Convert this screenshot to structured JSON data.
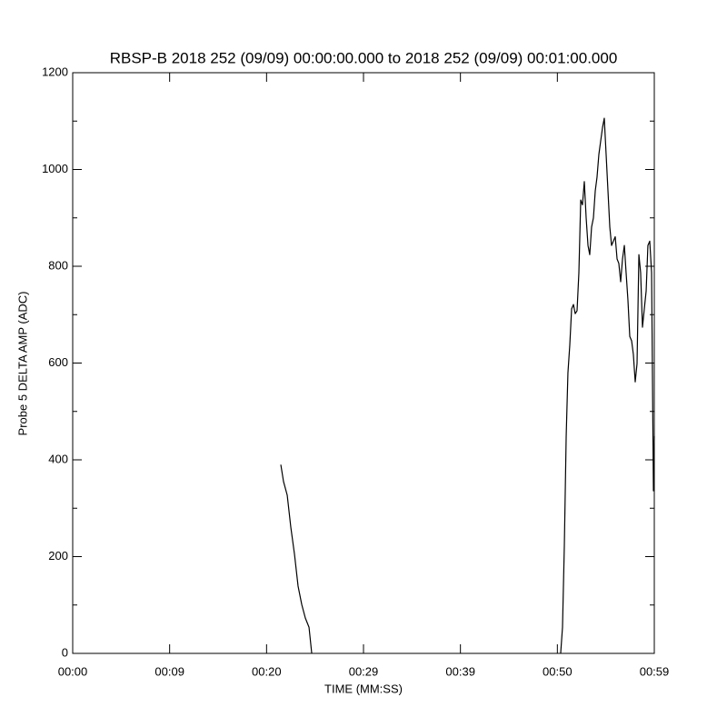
{
  "chart_data": {
    "type": "line",
    "title": "RBSP-B 2018 252 (09/09) 00:00:00.000 to 2018 252 (09/09) 00:01:00.000",
    "x_label": "TIME (MM:SS)",
    "y_label": "Probe 5 DELTA AMP (ADC)",
    "xlim": [
      0,
      60
    ],
    "xticks": [
      {
        "value": 0,
        "label": "00:00"
      },
      {
        "value": 10,
        "label": "00:09"
      },
      {
        "value": 20,
        "label": "00:20"
      },
      {
        "value": 30,
        "label": "00:29"
      },
      {
        "value": 40,
        "label": "00:39"
      },
      {
        "value": 50,
        "label": "00:50"
      },
      {
        "value": 60,
        "label": "00:59"
      }
    ],
    "ylim": [
      0,
      1200
    ],
    "yticks": [
      0,
      200,
      400,
      600,
      800,
      1000,
      1200
    ],
    "yminorticks": [
      100,
      300,
      500,
      700,
      900,
      1100
    ],
    "grid": false,
    "series": [
      {
        "name": "Probe 5 DELTA AMP",
        "color": "#000000",
        "x": [
          21.47,
          21.75,
          22.13,
          22.5,
          22.88,
          23.25,
          23.63,
          24.0,
          24.38,
          24.66,
          37,
          50.34,
          50.53,
          50.72,
          50.91,
          51.09,
          51.28,
          51.47,
          51.66,
          51.84,
          52.03,
          52.22,
          52.41,
          52.59,
          52.78,
          52.97,
          53.16,
          53.34,
          53.53,
          53.72,
          53.91,
          54.09,
          54.28,
          54.47,
          54.66,
          54.84,
          55.03,
          55.22,
          55.41,
          55.59,
          55.78,
          55.97,
          56.16,
          56.34,
          56.53,
          56.72,
          56.91,
          57.09,
          57.28,
          57.47,
          57.66,
          57.84,
          58.03,
          58.22,
          58.41,
          58.59,
          58.78,
          58.97,
          59.16,
          59.34,
          59.53,
          59.72,
          59.91,
          60
        ],
        "values": [
          390,
          355,
          327,
          261,
          205,
          139,
          101,
          73,
          54,
          0,
          null,
          0,
          54,
          223,
          449,
          580,
          637,
          712,
          721,
          702,
          708,
          787,
          937,
          927,
          975,
          900,
          843,
          824,
          881,
          900,
          956,
          984,
          1031,
          1059,
          1087,
          1106,
          1031,
          956,
          881,
          843,
          852,
          861,
          815,
          806,
          768,
          815,
          843,
          787,
          730,
          655,
          646,
          618,
          561,
          599,
          824,
          787,
          674,
          712,
          749,
          843,
          852,
          787,
          336,
          449
        ]
      }
    ]
  }
}
